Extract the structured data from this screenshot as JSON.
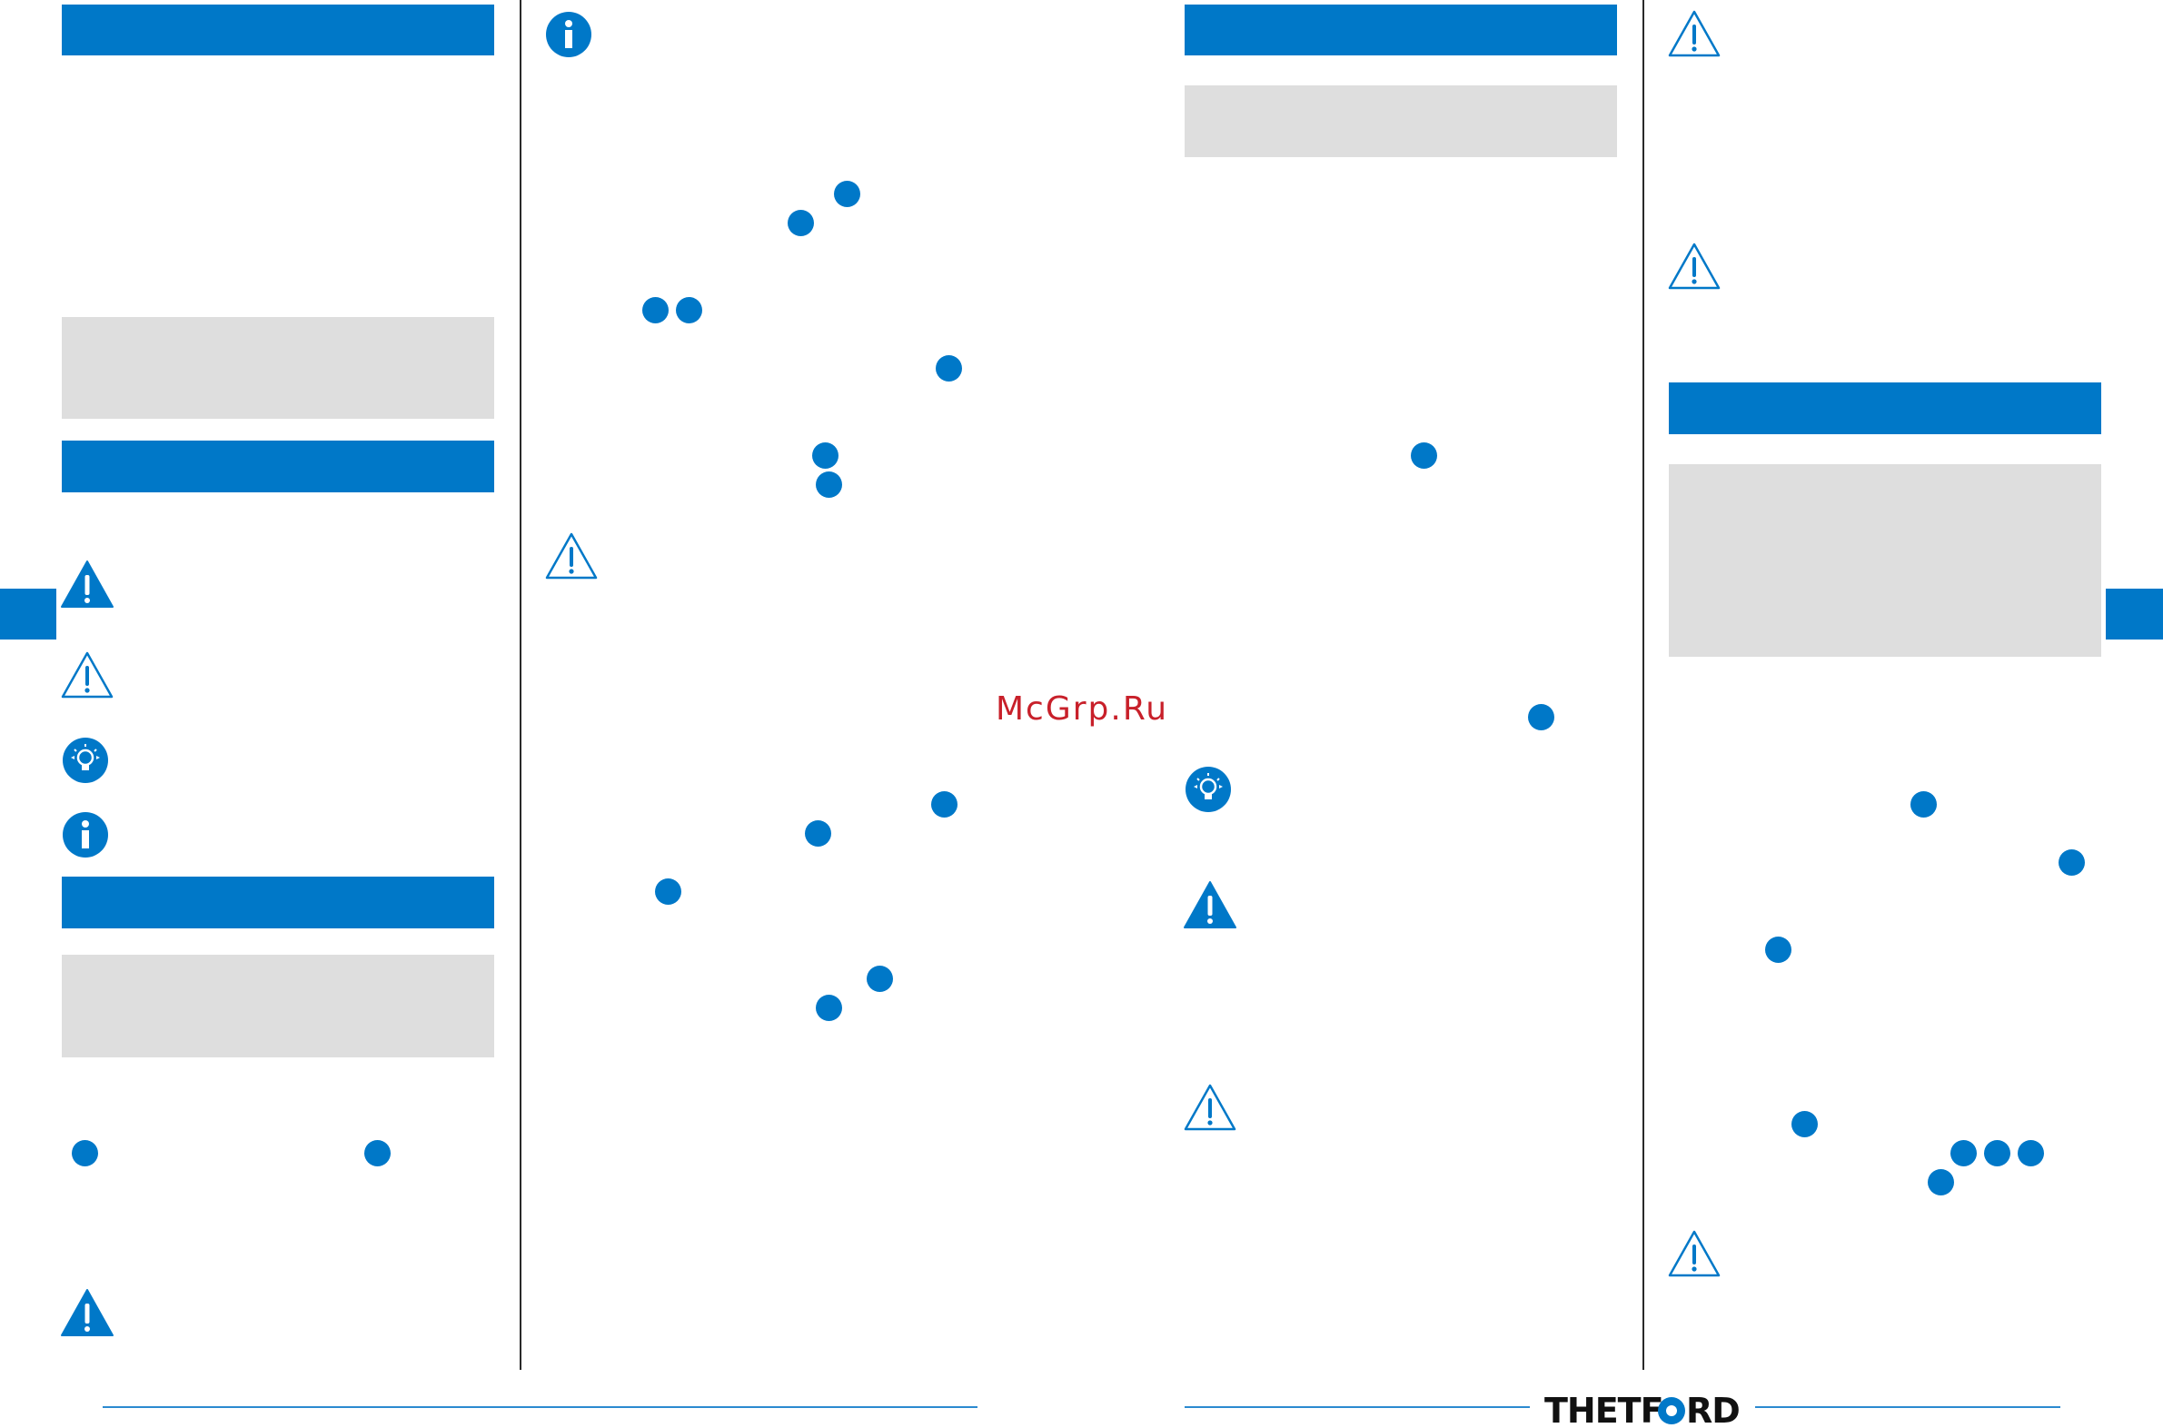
{
  "watermark": {
    "text": "McGrp.Ru"
  },
  "brand": {
    "logo_text": "THETFORD",
    "color": "#0078c8"
  },
  "colors": {
    "accent": "#0078c8",
    "panel": "#dedede",
    "rule": "#2b8ad0",
    "watermark": "#c8202a"
  },
  "icons": [
    "warning-filled-icon",
    "warning-outline-icon",
    "tip-lightbulb-icon",
    "info-icon"
  ]
}
